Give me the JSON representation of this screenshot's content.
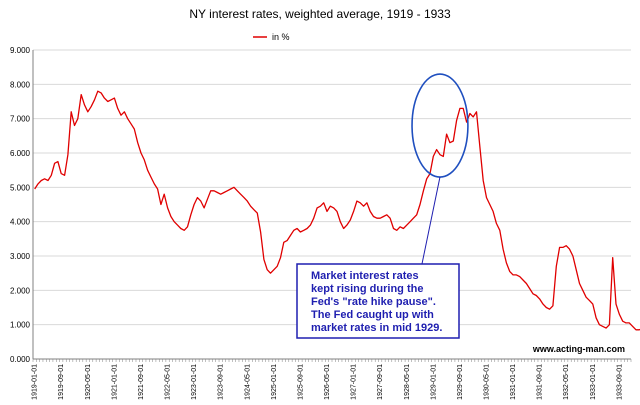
{
  "chart_data": {
    "type": "line",
    "title": "NY interest rates, weighted average, 1919 - 1933",
    "legend": {
      "label": "in %",
      "color": "#e00000",
      "placement": "top-center"
    },
    "xlabel": "",
    "ylabel": "",
    "ylim": [
      0,
      9
    ],
    "yticks": [
      "0.000",
      "1.000",
      "2.000",
      "3.000",
      "4.000",
      "5.000",
      "6.000",
      "7.000",
      "8.000",
      "9.000"
    ],
    "xticks": [
      "1919-01-01",
      "1919-09-01",
      "1920-05-01",
      "1921-01-01",
      "1921-09-01",
      "1922-05-01",
      "1923-01-01",
      "1923-09-01",
      "1924-05-01",
      "1925-01-01",
      "1925-09-01",
      "1926-05-01",
      "1927-01-01",
      "1927-09-01",
      "1928-05-01",
      "1929-01-01",
      "1929-09-01",
      "1930-05-01",
      "1931-01-01",
      "1931-09-01",
      "1932-05-01",
      "1933-01-01",
      "1933-09-01"
    ],
    "grid": "horizontal",
    "series": [
      {
        "name": "in %",
        "color": "#e00000",
        "x_start": "1919-01",
        "frequency": "monthly",
        "values": [
          4.95,
          5.1,
          5.2,
          5.25,
          5.2,
          5.35,
          5.7,
          5.75,
          5.4,
          5.35,
          5.95,
          7.2,
          6.8,
          7.0,
          7.7,
          7.4,
          7.2,
          7.35,
          7.55,
          7.8,
          7.75,
          7.6,
          7.5,
          7.55,
          7.6,
          7.3,
          7.1,
          7.2,
          7.0,
          6.85,
          6.7,
          6.3,
          6.0,
          5.8,
          5.5,
          5.3,
          5.1,
          4.95,
          4.5,
          4.8,
          4.4,
          4.15,
          4.0,
          3.9,
          3.8,
          3.75,
          3.85,
          4.2,
          4.5,
          4.7,
          4.6,
          4.4,
          4.65,
          4.9,
          4.9,
          4.85,
          4.8,
          4.85,
          4.9,
          4.95,
          5.0,
          4.9,
          4.8,
          4.7,
          4.6,
          4.45,
          4.35,
          4.25,
          3.7,
          2.9,
          2.6,
          2.5,
          2.6,
          2.7,
          2.95,
          3.4,
          3.45,
          3.6,
          3.75,
          3.8,
          3.7,
          3.75,
          3.8,
          3.9,
          4.1,
          4.4,
          4.45,
          4.55,
          4.3,
          4.45,
          4.4,
          4.3,
          4.0,
          3.8,
          3.9,
          4.05,
          4.3,
          4.6,
          4.55,
          4.45,
          4.55,
          4.3,
          4.15,
          4.1,
          4.1,
          4.15,
          4.2,
          4.1,
          3.8,
          3.75,
          3.85,
          3.8,
          3.9,
          4.0,
          4.1,
          4.2,
          4.5,
          4.9,
          5.25,
          5.4,
          5.9,
          6.1,
          5.95,
          5.9,
          6.55,
          6.3,
          6.35,
          6.95,
          7.3,
          7.3,
          6.9,
          7.15,
          7.05,
          7.2,
          6.2,
          5.2,
          4.7,
          4.5,
          4.3,
          3.95,
          3.75,
          3.2,
          2.8,
          2.55,
          2.45,
          2.45,
          2.4,
          2.3,
          2.2,
          2.05,
          1.9,
          1.85,
          1.75,
          1.6,
          1.5,
          1.45,
          1.55,
          2.7,
          3.25,
          3.25,
          3.3,
          3.2,
          3.0,
          2.6,
          2.2,
          2.0,
          1.8,
          1.7,
          1.6,
          1.2,
          1.0,
          0.95,
          0.9,
          1.0,
          2.95,
          1.6,
          1.3,
          1.1,
          1.05,
          1.05,
          0.95,
          0.85,
          0.85,
          0.9,
          1.0
        ]
      }
    ],
    "annotations": [
      {
        "type": "ellipse",
        "target_range": [
          "1928-09",
          "1929-09"
        ],
        "color": "#1f4fbf"
      },
      {
        "type": "callout",
        "lines": [
          "Market interest rates",
          "kept rising during the",
          "Fed's \"rate hike pause\".",
          "The Fed caught up with",
          "market rates in mid 1929."
        ],
        "color": "#1f1fb0"
      }
    ],
    "watermark": "www.acting-man.com"
  }
}
